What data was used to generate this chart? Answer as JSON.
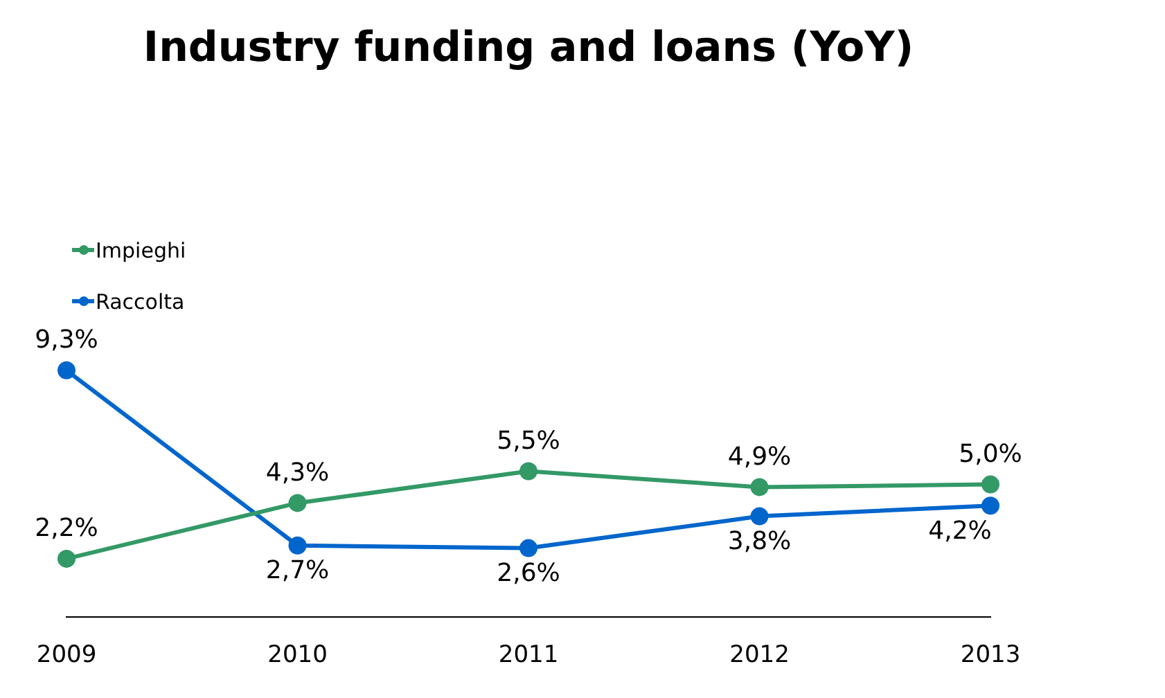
{
  "chart_data": {
    "type": "line",
    "title": "Industry funding and loans (YoY)",
    "categories": [
      "2009",
      "2010",
      "2011",
      "2012",
      "2013"
    ],
    "series": [
      {
        "name": "Impieghi",
        "color": "#339966",
        "values": [
          2.2,
          4.3,
          5.5,
          4.9,
          5.0
        ],
        "value_labels": [
          "2,2%",
          "4,3%",
          "5,5%",
          "4,9%",
          "5,0%"
        ]
      },
      {
        "name": "Raccolta",
        "color": "#0066cc",
        "values": [
          9.3,
          2.7,
          2.6,
          3.8,
          4.2
        ],
        "value_labels": [
          "9,3%",
          "2,7%",
          "2,6%",
          "3,8%",
          "4,2%"
        ]
      }
    ],
    "tick_labels": "x",
    "grid": false,
    "legend": "top left",
    "marker": "circle",
    "line_style": "solid"
  }
}
